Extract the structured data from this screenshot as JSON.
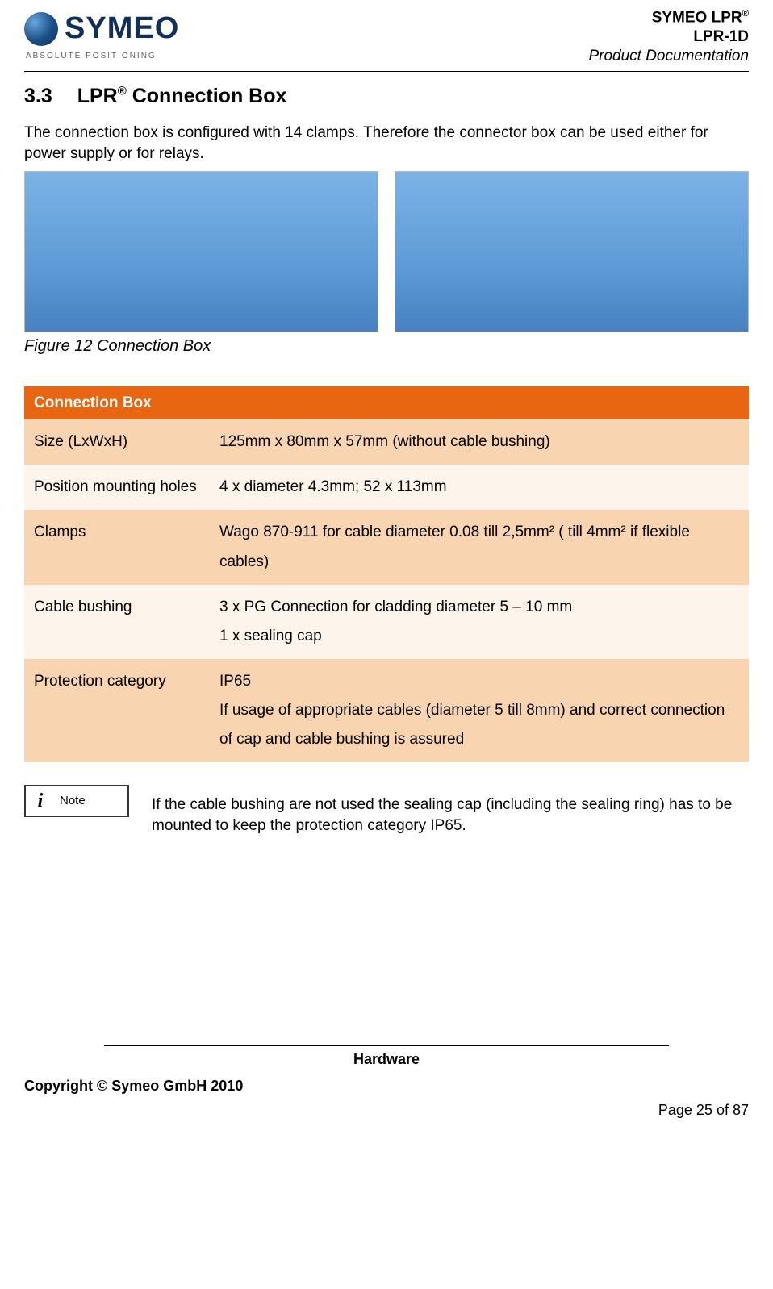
{
  "header": {
    "company_name": "SYMEO",
    "tagline": "ABSOLUTE POSITIONING",
    "product_line1a": "SYMEO LPR",
    "product_line1b": "®",
    "product_line2": "LPR-1D",
    "product_line3": "Product Documentation"
  },
  "section": {
    "number": "3.3",
    "title_pre": "LPR",
    "title_sup": "®",
    "title_post": " Connection Box"
  },
  "intro": "The connection box is configured with 14 clamps. Therefore the connector box can be used either for power supply or for relays.",
  "figure": {
    "placeholder1": "",
    "placeholder2": "",
    "caption": "Figure 12 Connection Box"
  },
  "table": {
    "header_bg": "#e86512",
    "row_odd_bg": "#f9d4b0",
    "row_even_bg": "#fdf4ec",
    "title": "Connection Box",
    "rows": [
      {
        "label": "Size (LxWxH)",
        "value": "125mm x 80mm x 57mm (without cable bushing)"
      },
      {
        "label": "Position mounting holes",
        "value": "4 x diameter 4.3mm; 52 x 113mm"
      },
      {
        "label": "Clamps",
        "value": "Wago 870-911 for cable diameter 0.08 till 2,5mm² ( till 4mm² if flexible cables)"
      },
      {
        "label": "Cable bushing",
        "value": "3 x PG Connection for cladding diameter 5 – 10 mm\n1 x sealing cap"
      },
      {
        "label": "Protection category",
        "value": "IP65\nIf usage of appropriate cables (diameter 5 till 8mm) and correct connection of cap and cable bushing is assured"
      }
    ]
  },
  "note": {
    "label": "Note",
    "text": "If the cable bushing are not used the sealing cap (including the sealing ring) has to be mounted to keep the protection category IP65."
  },
  "footer": {
    "section": "Hardware",
    "copyright": "Copyright © Symeo GmbH 2010",
    "page": "Page 25 of 87"
  }
}
